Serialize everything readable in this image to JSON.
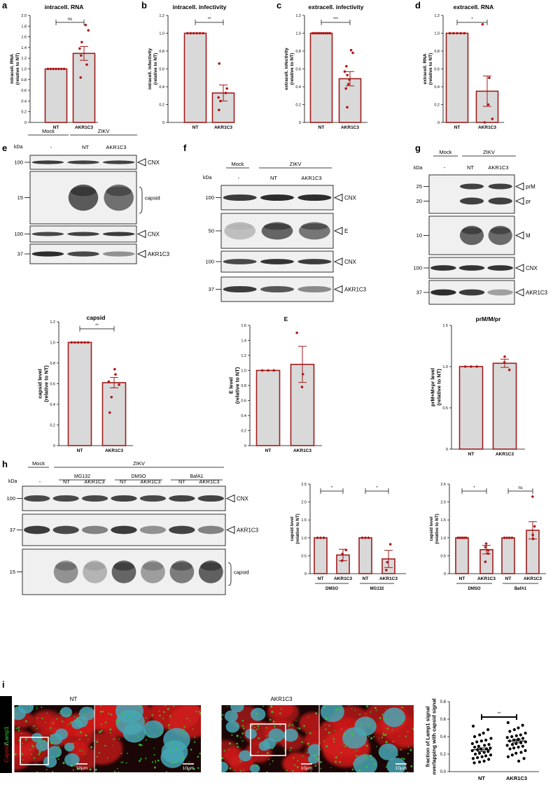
{
  "colors": {
    "bar_fill": "#d9d9d9",
    "bar_stroke": "#a01c1c",
    "point": "#b01818",
    "text": "#000000",
    "blot_bg": "#f0f0f0",
    "band": "#222222",
    "nucleus": "#46a6b4",
    "lamp1": "#2fd12f",
    "capsid": "#d01a1a",
    "cell_bg": "#1a0606"
  },
  "panel_letters": [
    "a",
    "b",
    "c",
    "d",
    "e",
    "f",
    "g",
    "h",
    "i"
  ],
  "chart_data": [
    {
      "id": "a",
      "type": "bar",
      "title": "intracell. RNA",
      "ylabel": "intracell. RNA\n(relative to NT)",
      "categories": [
        "NT",
        "AKR1C3"
      ],
      "values": [
        1.0,
        1.29
      ],
      "errors": [
        0,
        0.13
      ],
      "points": [
        [
          1,
          1,
          1,
          1,
          1,
          1,
          1
        ],
        [
          1.82,
          1.72,
          1.5,
          1.38,
          1.25,
          1.08,
          0.84
        ]
      ],
      "ylim": [
        0,
        2.0
      ],
      "yticks": [
        "0",
        "0.2",
        "0.4",
        "0.6",
        "0.8",
        "1.0",
        "1.2",
        "1.4",
        "1.6",
        "1.8",
        "2.0"
      ],
      "sig": [
        {
          "text": "ns",
          "from": 0,
          "to": 1
        }
      ]
    },
    {
      "id": "b",
      "type": "bar",
      "title": "intracell. infectivity",
      "ylabel": "intracell. infectivity\n(relative to NT)",
      "categories": [
        "NT",
        "AKR1C3"
      ],
      "values": [
        1.0,
        0.33
      ],
      "errors": [
        0,
        0.09
      ],
      "points": [
        [
          1,
          1,
          1,
          1,
          1,
          1
        ],
        [
          0.66,
          0.38,
          0.33,
          0.28,
          0.24,
          0.14
        ]
      ],
      "ylim": [
        0,
        1.2
      ],
      "yticks": [
        "0",
        "0.2",
        "0.4",
        "0.6",
        "0.8",
        "1.0",
        "1.2"
      ],
      "sig": [
        {
          "text": "**",
          "from": 0,
          "to": 1
        }
      ]
    },
    {
      "id": "c",
      "type": "bar",
      "title": "extracell. infectivity",
      "ylabel": "extracell. infectivity\n(relative to NT)",
      "categories": [
        "NT",
        "AKR1C3"
      ],
      "values": [
        1.0,
        0.49
      ],
      "errors": [
        0,
        0.08
      ],
      "points": [
        [
          1,
          1,
          1,
          1,
          1,
          1,
          1,
          1,
          1
        ],
        [
          0.81,
          0.78,
          0.63,
          0.57,
          0.53,
          0.48,
          0.43,
          0.38,
          0.17
        ]
      ],
      "ylim": [
        0,
        1.2
      ],
      "yticks": [
        "0",
        "0.2",
        "0.4",
        "0.6",
        "0.8",
        "1.0",
        "1.2"
      ],
      "sig": [
        {
          "text": "***",
          "from": 0,
          "to": 1
        }
      ]
    },
    {
      "id": "d",
      "type": "bar",
      "title": "extracell. RNA",
      "ylabel": "extracell. RNA\n(relative to NT)",
      "categories": [
        "NT",
        "AKR1C3"
      ],
      "values": [
        1.0,
        0.35
      ],
      "errors": [
        0,
        0.17
      ],
      "points": [
        [
          1,
          1,
          1,
          1,
          1
        ],
        [
          1.1,
          0.5,
          0.2,
          0.04,
          0.0
        ]
      ],
      "ylim": [
        0,
        1.2
      ],
      "yticks": [
        "0",
        "0.2",
        "0.4",
        "0.6",
        "0.8",
        "1.0",
        "1.2"
      ],
      "sig": [
        {
          "text": "*",
          "from": 0,
          "to": 1
        }
      ]
    },
    {
      "id": "e",
      "type": "bar",
      "title": "capsid",
      "ylabel": "capsid level\n(relative to NT)",
      "categories": [
        "NT",
        "AKR1C3"
      ],
      "values": [
        1.0,
        0.61
      ],
      "errors": [
        0,
        0.05
      ],
      "points": [
        [
          1,
          1,
          1,
          1,
          1,
          1
        ],
        [
          0.74,
          0.69,
          0.62,
          0.59,
          0.47,
          0.32
        ]
      ],
      "ylim": [
        0,
        1.2
      ],
      "yticks": [
        "0",
        "0.2",
        "0.4",
        "0.6",
        "0.8",
        "1.0",
        "1.2"
      ],
      "sig": [
        {
          "text": "**",
          "from": 0,
          "to": 1
        }
      ]
    },
    {
      "id": "f",
      "type": "bar",
      "title": "E",
      "ylabel": "E level\n(relative to NT)",
      "categories": [
        "NT",
        "AKR1C3"
      ],
      "values": [
        1.0,
        1.08
      ],
      "errors": [
        0,
        0.24
      ],
      "points": [
        [
          1,
          1,
          1
        ],
        [
          1.5,
          0.95,
          0.78
        ]
      ],
      "ylim": [
        0,
        1.6
      ],
      "yticks": [
        "0",
        "0.2",
        "0.4",
        "0.6",
        "0.8",
        "1.0",
        "1.2",
        "1.4",
        "1.6"
      ],
      "sig": []
    },
    {
      "id": "g",
      "type": "bar",
      "title": "prM/M/pr",
      "ylabel": "prM+M+pr level\n(relative to NT)",
      "categories": [
        "NT",
        "AKR1C3"
      ],
      "values": [
        1.0,
        1.04
      ],
      "errors": [
        0,
        0.05
      ],
      "points": [
        [
          1,
          1,
          1
        ],
        [
          1.12,
          1.05,
          0.96
        ]
      ],
      "ylim": [
        0,
        1.5
      ],
      "yticks": [
        "0",
        "0.5",
        "1.0",
        "1.5"
      ],
      "sig": []
    },
    {
      "id": "h1",
      "type": "bar",
      "title": "",
      "ylabel": "capsid level\n(relative to NT)",
      "categories": [
        "NT",
        "AKR1C3",
        "NT",
        "AKR1C3"
      ],
      "values": [
        1.0,
        0.52,
        1.0,
        0.41
      ],
      "errors": [
        0,
        0.16,
        0,
        0.24
      ],
      "points": [
        [
          1,
          1,
          1
        ],
        [
          0.66,
          0.55,
          0.36
        ],
        [
          1,
          1,
          1
        ],
        [
          0.82,
          0.32,
          0.1
        ]
      ],
      "groups": [
        {
          "label": "DMSO",
          "from": 0,
          "to": 1
        },
        {
          "label": "MG132",
          "from": 2,
          "to": 3
        }
      ],
      "ylim": [
        0,
        2.5
      ],
      "yticks": [
        "0",
        "0.5",
        "1.0",
        "1.5",
        "2.0",
        "2.5"
      ],
      "sig": [
        {
          "text": "*",
          "from": 0,
          "to": 1
        },
        {
          "text": "*",
          "from": 2,
          "to": 3
        }
      ]
    },
    {
      "id": "h2",
      "type": "bar",
      "title": "",
      "ylabel": "capsid level\n(relative to NT)",
      "categories": [
        "NT",
        "AKR1C3",
        "NT",
        "AKR1C3"
      ],
      "values": [
        1.0,
        0.67,
        1.0,
        1.21
      ],
      "errors": [
        0,
        0.12,
        0,
        0.24
      ],
      "points": [
        [
          1,
          1,
          1,
          1,
          1
        ],
        [
          0.84,
          0.74,
          0.65,
          0.56,
          0.33
        ],
        [
          1,
          1,
          1,
          1
        ],
        [
          2.15,
          1.32,
          1.08,
          0.97
        ]
      ],
      "groups": [
        {
          "label": "DMSO",
          "from": 0,
          "to": 1
        },
        {
          "label": "BafA1",
          "from": 2,
          "to": 3
        }
      ],
      "ylim": [
        0,
        2.5
      ],
      "yticks": [
        "0",
        "0.5",
        "1.0",
        "1.5",
        "2.0",
        "2.5"
      ],
      "sig": [
        {
          "text": "*",
          "from": 0,
          "to": 1
        },
        {
          "text": "ns",
          "from": 2,
          "to": 3
        }
      ]
    },
    {
      "id": "i",
      "type": "scatter",
      "title": "",
      "ylabel": "fraction of Lamp1 signal\noverlapping with capsid signal",
      "categories": [
        "NT",
        "AKR1C3"
      ],
      "means": [
        0.25,
        0.35
      ],
      "sems": [
        0.02,
        0.02
      ],
      "points": [
        [
          0.52,
          0.48,
          0.44,
          0.42,
          0.4,
          0.38,
          0.36,
          0.35,
          0.34,
          0.32,
          0.31,
          0.3,
          0.29,
          0.28,
          0.27,
          0.26,
          0.26,
          0.25,
          0.24,
          0.23,
          0.22,
          0.21,
          0.2,
          0.19,
          0.18,
          0.17,
          0.16,
          0.15,
          0.14,
          0.12,
          0.11,
          0.1
        ],
        [
          0.56,
          0.53,
          0.5,
          0.48,
          0.46,
          0.44,
          0.42,
          0.41,
          0.4,
          0.39,
          0.38,
          0.37,
          0.36,
          0.35,
          0.34,
          0.33,
          0.32,
          0.31,
          0.3,
          0.29,
          0.28,
          0.27,
          0.26,
          0.24,
          0.22,
          0.21,
          0.19,
          0.17,
          0.15,
          0.12
        ]
      ],
      "ylim": [
        0,
        0.8
      ],
      "yticks": [
        "0.0",
        "0.2",
        "0.4",
        "0.6",
        "0.8"
      ],
      "sig": [
        {
          "text": "**",
          "from": 0,
          "to": 1
        }
      ]
    }
  ],
  "blots": {
    "e": {
      "kda": "kDa",
      "header_mock": "Mock",
      "header_virus": "ZIKV",
      "lanes": [
        "-",
        "NT",
        "AKR1C3"
      ],
      "strips": [
        {
          "mw": "100",
          "label": "CNX",
          "arrow": true,
          "kind": "strong",
          "bands": [
            0.9,
            0.85,
            0.85
          ]
        },
        {
          "mw": "15",
          "label": "capsid",
          "arrow": false,
          "kind": "smear",
          "bands": [
            0,
            1.0,
            0.8
          ]
        },
        {
          "mw": "100",
          "label": "CNX",
          "arrow": true,
          "kind": "strong",
          "bands": [
            0.8,
            0.85,
            0.9
          ]
        },
        {
          "mw": "37",
          "label": "AKR1C3",
          "arrow": true,
          "kind": "strong",
          "bands": [
            1.0,
            0.8,
            0.3
          ]
        }
      ]
    },
    "f": {
      "kda": "kDa",
      "header_mock": "Mock",
      "header_virus": "ZIKV",
      "lanes": [
        "-",
        "NT",
        "AKR1C3"
      ],
      "strips": [
        {
          "mw": "100",
          "label": "CNX",
          "arrow": true,
          "kind": "strong",
          "bands": [
            0.9,
            1.0,
            1.0
          ]
        },
        {
          "mw": "50",
          "label": "E",
          "arrow": true,
          "kind": "smear",
          "bands": [
            0.1,
            0.9,
            0.75
          ]
        },
        {
          "mw": "100",
          "label": "CNX",
          "arrow": true,
          "kind": "strong",
          "bands": [
            0.8,
            0.95,
            0.9
          ]
        },
        {
          "mw": "37",
          "label": "AKR1C3",
          "arrow": true,
          "kind": "strong",
          "bands": [
            0.9,
            0.7,
            0.35
          ]
        }
      ]
    },
    "g": {
      "kda": "kDa",
      "header_mock": "Mock",
      "header_virus": "ZIKV",
      "lanes": [
        "-",
        "NT",
        "AKR1C3"
      ],
      "strips": [
        {
          "mw": "25",
          "mw2": "20",
          "label": "prM",
          "label2": "pr",
          "arrow": true,
          "kind": "double",
          "bands": [
            0,
            1.0,
            1.0
          ]
        },
        {
          "mw": "10",
          "label": "M",
          "arrow": true,
          "kind": "smear",
          "bands": [
            0,
            0.9,
            0.85
          ]
        },
        {
          "mw": "100",
          "label": "CNX",
          "arrow": true,
          "kind": "strong",
          "bands": [
            0.95,
            0.95,
            0.95
          ]
        },
        {
          "mw": "37",
          "label": "AKR1C3",
          "arrow": true,
          "kind": "strong",
          "bands": [
            1.0,
            0.9,
            0.2
          ]
        }
      ]
    },
    "h": {
      "kda": "kDa",
      "header_mock": "Mock",
      "header_virus": "ZIKV",
      "treatments": [
        "MG132",
        "DMSO",
        "BafA1"
      ],
      "lanes": [
        "-",
        "NT",
        "AKR1C3",
        "NT",
        "AKR1C3",
        "NT",
        "AKR1C3"
      ],
      "strips": [
        {
          "mw": "100",
          "label": "CNX",
          "arrow": true,
          "kind": "strong",
          "bands": [
            0.8,
            0.8,
            0.8,
            0.85,
            0.8,
            0.85,
            0.85
          ]
        },
        {
          "mw": "37",
          "label": "AKR1C3",
          "arrow": true,
          "kind": "strong",
          "bands": [
            0.9,
            0.8,
            0.4,
            0.9,
            0.3,
            0.85,
            0.4
          ]
        },
        {
          "mw": "15",
          "label": "capsid",
          "arrow": false,
          "kind": "smear",
          "bands": [
            0,
            0.5,
            0.2,
            0.9,
            0.4,
            0.7,
            0.95
          ]
        }
      ]
    }
  },
  "micrographs": {
    "channel_label_capsid": "Capsid",
    "channel_label_sep": "/",
    "channel_label_lamp": "Lamp1",
    "nt_title": "NT",
    "akr_title": "AKR1C3",
    "scalebar": "10μm"
  }
}
